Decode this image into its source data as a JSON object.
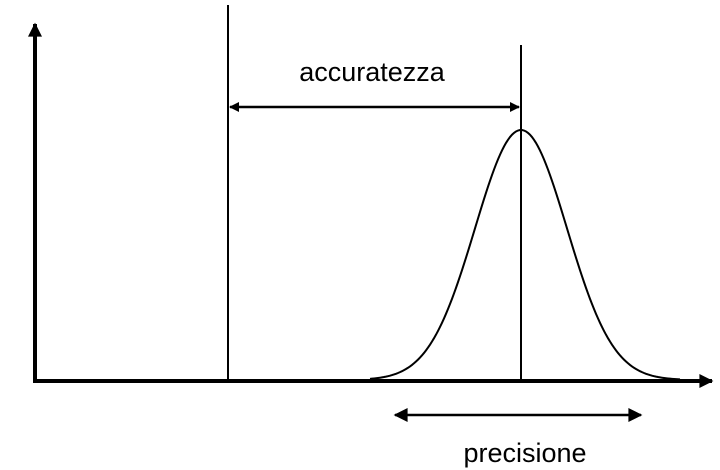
{
  "labels": {
    "accuracy": "accuratezza",
    "precision": "precisione"
  }
}
